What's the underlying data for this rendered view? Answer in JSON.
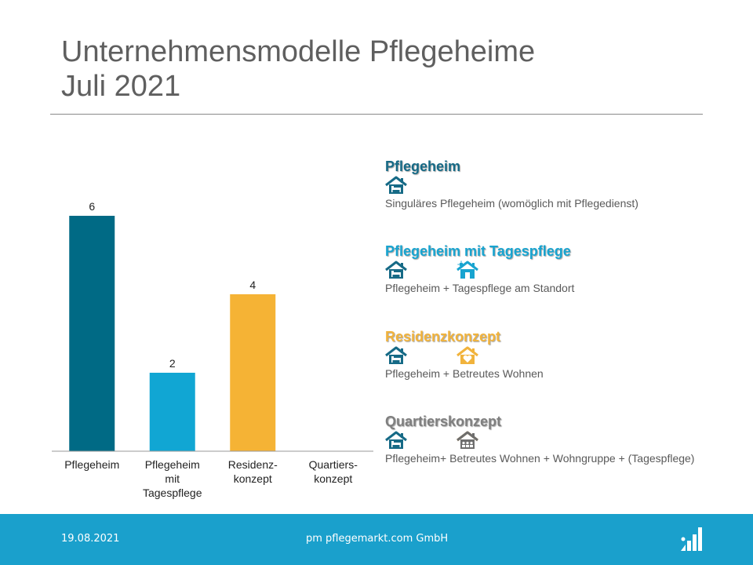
{
  "title": {
    "line1": "Unternehmensmodelle Pflegeheime",
    "line2": "Juli 2021"
  },
  "chart_data": {
    "type": "bar",
    "categories": [
      "Pflegeheim",
      "Pflegeheim mit Tagespflege",
      "Residenz-konzept",
      "Quartiers-konzept"
    ],
    "category_label_lines": [
      [
        "Pflegeheim"
      ],
      [
        "Pflegeheim",
        "mit",
        "Tagespflege"
      ],
      [
        "Residenz-",
        "konzept"
      ],
      [
        "Quartiers-",
        "konzept"
      ]
    ],
    "values": [
      6,
      2,
      4,
      null
    ],
    "data_labels": [
      "6",
      "2",
      "4",
      ""
    ],
    "colors": [
      "#006a85",
      "#11a6d3",
      "#f5b335",
      "#7f7f7f"
    ],
    "ylim": [
      0,
      6
    ],
    "grid": false,
    "title": "",
    "xlabel": "",
    "ylabel": ""
  },
  "legend": [
    {
      "title": "Pflegeheim",
      "color": "#166a86",
      "icons": [
        "house-bed-icon"
      ],
      "icon_colors": [
        "#166a86"
      ],
      "description": "Singuläres Pflegeheim (womöglich mit Pflegedienst)"
    },
    {
      "title": "Pflegeheim mit Tagespflege",
      "color": "#18a4d0",
      "icons": [
        "house-bed-icon",
        "house-sun-icon"
      ],
      "icon_colors": [
        "#166a86",
        "#18a4d0"
      ],
      "description": "Pflegeheim + Tagespflege am Standort"
    },
    {
      "title": "Residenzkonzept",
      "color": "#f1b33c",
      "icons": [
        "house-bed-icon",
        "house-heart-icon"
      ],
      "icon_colors": [
        "#166a86",
        "#f1b33c"
      ],
      "description": "Pflegeheim + Betreutes Wohnen"
    },
    {
      "title": "Quartierskonzept",
      "color": "#7f7f7f",
      "icons": [
        "house-bed-icon",
        "house-heart-icon",
        "house-people-icon"
      ],
      "icon_colors": [
        "#166a86",
        "#f1b33c",
        "#6e6e6e"
      ],
      "description": "Pflegeheim+ Betreutes Wohnen + Wohngruppe + (Tagespflege)"
    }
  ],
  "footer": {
    "date": "19.08.2021",
    "company": "pm pflegemarkt.com GmbH",
    "bg_color": "#1aa0cc",
    "logo_icon": "pflegemarkt-logo-icon"
  }
}
